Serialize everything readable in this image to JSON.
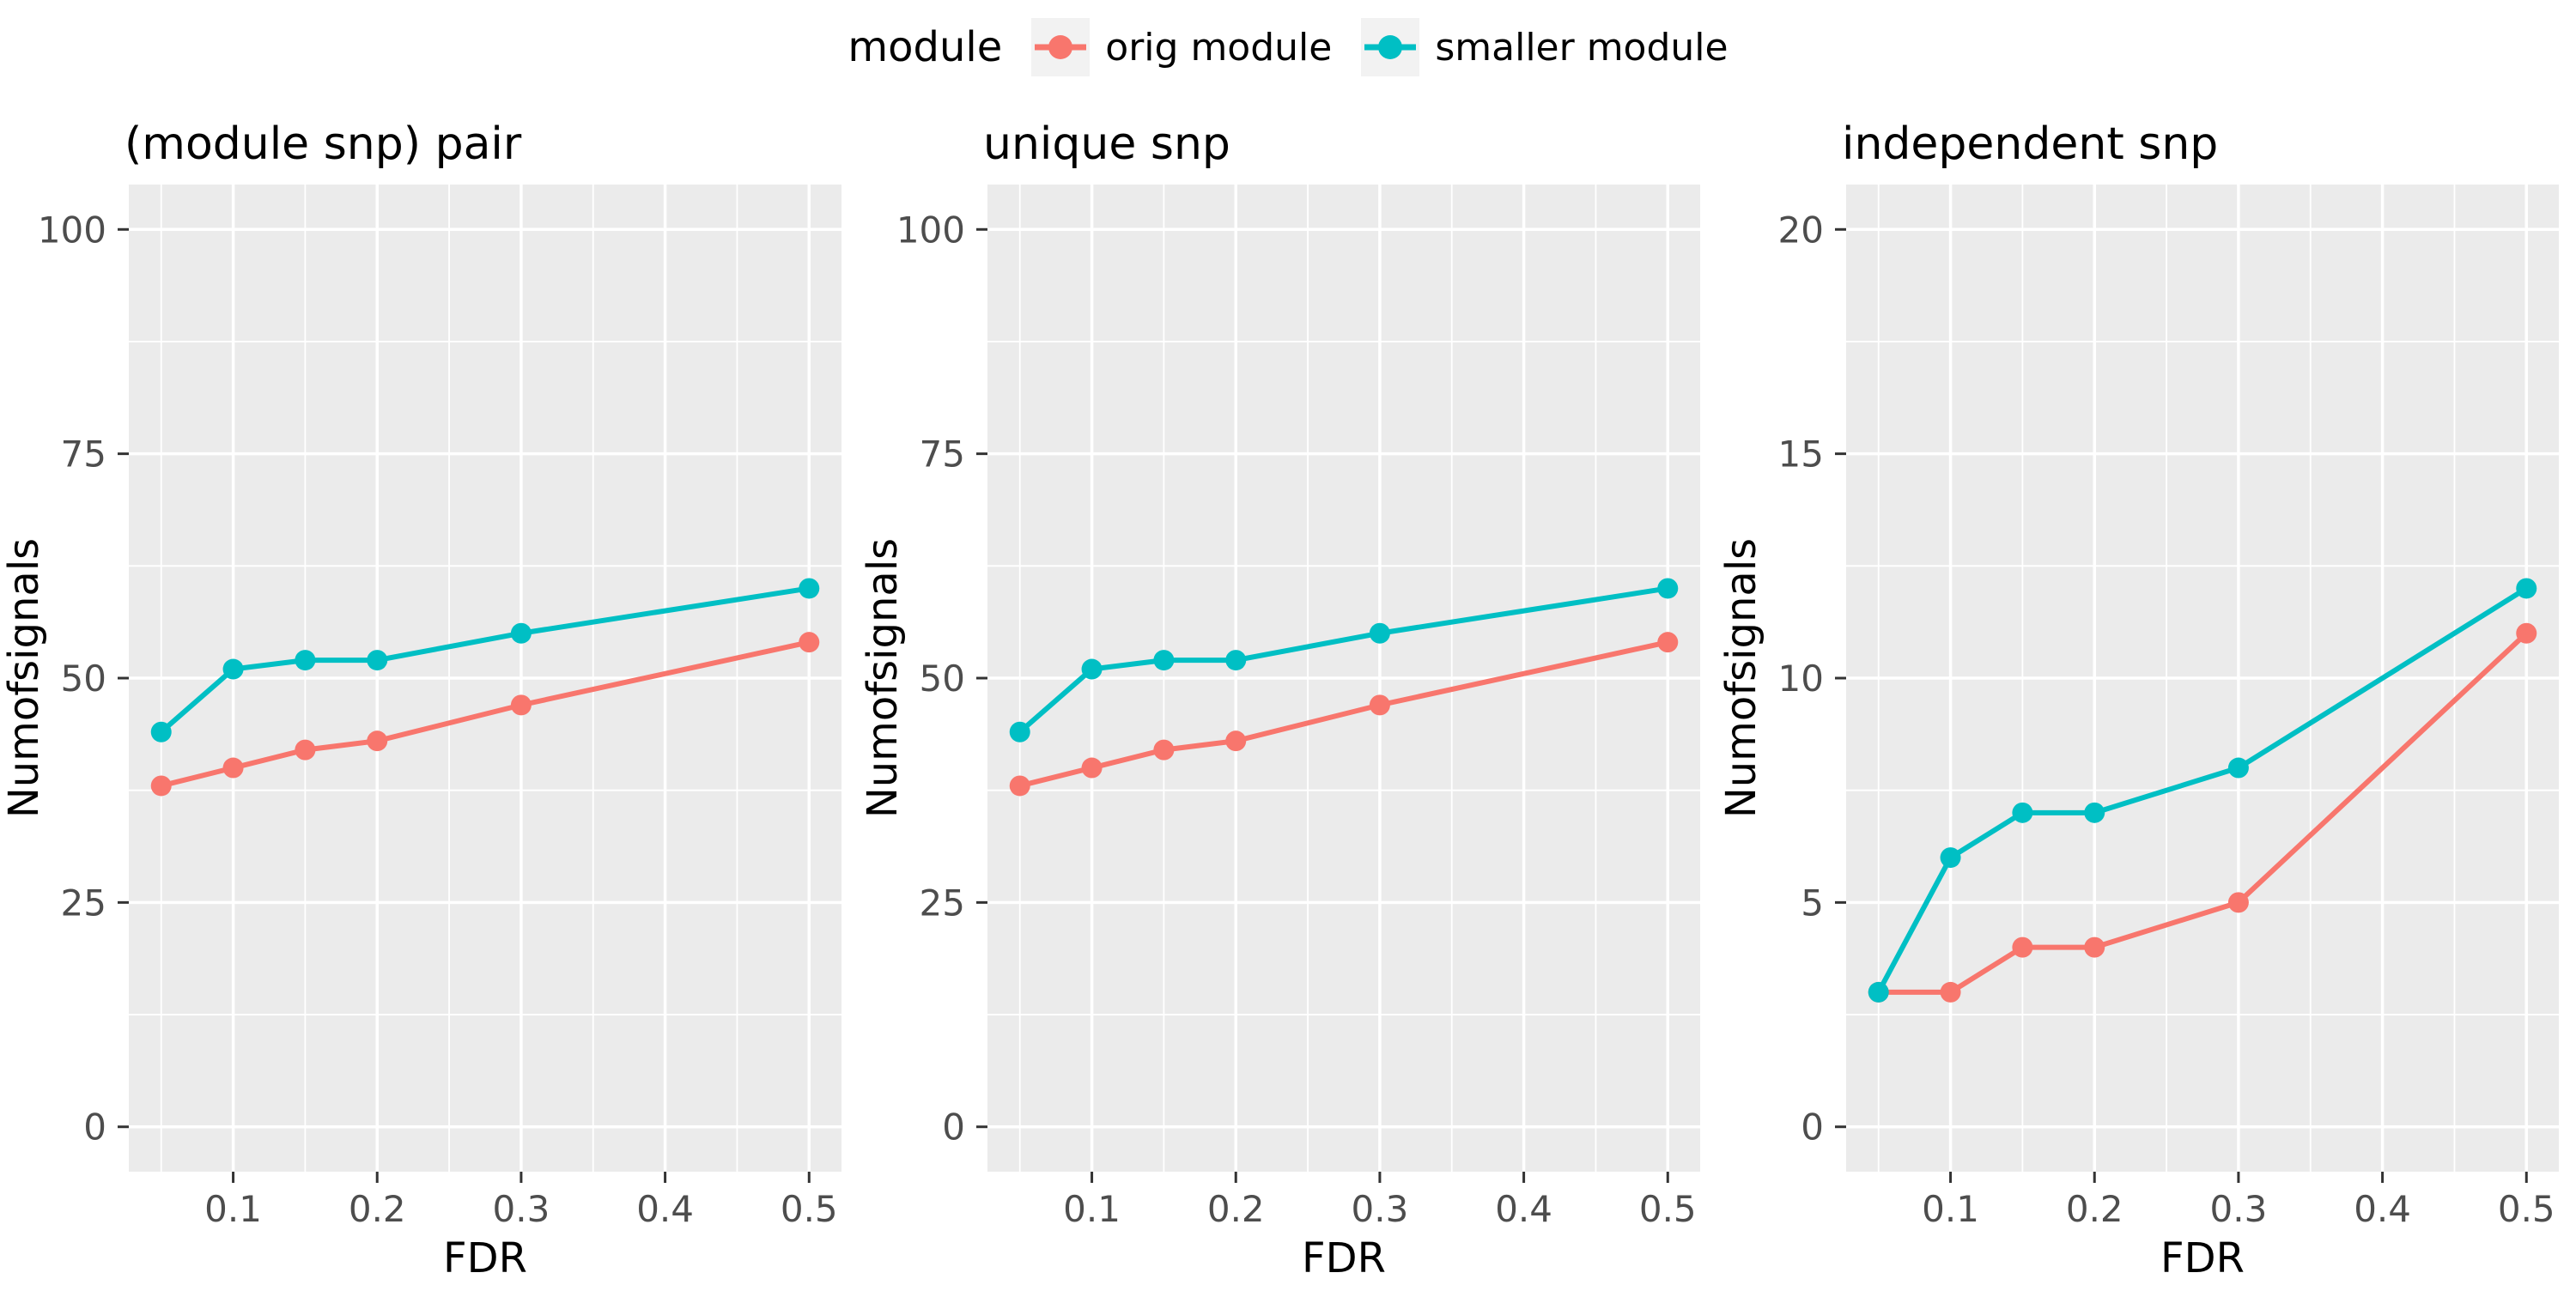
{
  "page": {
    "background": "#ffffff"
  },
  "legend": {
    "title": "module",
    "key_background": "#F2F2F2",
    "items": [
      {
        "label": "orig module",
        "color": "#F8766D"
      },
      {
        "label": "smaller module",
        "color": "#00BFC4"
      }
    ]
  },
  "style": {
    "panel_background": "#EBEBEB",
    "grid_color": "#FFFFFF",
    "tick_label_color": "#4D4D4D",
    "tick_mark_color": "#333333",
    "title_color": "#000000",
    "axis_title_color": "#000000"
  },
  "chart_data": [
    {
      "type": "line",
      "title": "(module snp) pair",
      "xlabel": "FDR",
      "ylabel": "Numofsignals",
      "x": [
        0.05,
        0.1,
        0.15,
        0.2,
        0.3,
        0.5
      ],
      "series": [
        {
          "name": "orig module",
          "color": "#F8766D",
          "values": [
            38,
            40,
            42,
            43,
            47,
            54
          ]
        },
        {
          "name": "smaller module",
          "color": "#00BFC4",
          "values": [
            44,
            51,
            52,
            52,
            55,
            60
          ]
        }
      ],
      "xlim": [
        0.05,
        0.5
      ],
      "ylim": [
        0,
        100
      ],
      "xticks": [
        0.1,
        0.2,
        0.3,
        0.4,
        0.5
      ],
      "xtick_labels": [
        "0.1",
        "0.2",
        "0.3",
        "0.4",
        "0.5"
      ],
      "yticks": [
        0,
        25,
        50,
        75,
        100
      ],
      "ytick_labels": [
        "0",
        "25",
        "50",
        "75",
        "100"
      ],
      "xminor": [
        0.05,
        0.15,
        0.25,
        0.35,
        0.45
      ],
      "yminor": [
        12.5,
        37.5,
        62.5,
        87.5
      ],
      "grid": true,
      "legend_position": "top"
    },
    {
      "type": "line",
      "title": "unique snp",
      "xlabel": "FDR",
      "ylabel": "Numofsignals",
      "x": [
        0.05,
        0.1,
        0.15,
        0.2,
        0.3,
        0.5
      ],
      "series": [
        {
          "name": "orig module",
          "color": "#F8766D",
          "values": [
            38,
            40,
            42,
            43,
            47,
            54
          ]
        },
        {
          "name": "smaller module",
          "color": "#00BFC4",
          "values": [
            44,
            51,
            52,
            52,
            55,
            60
          ]
        }
      ],
      "xlim": [
        0.05,
        0.5
      ],
      "ylim": [
        0,
        100
      ],
      "xticks": [
        0.1,
        0.2,
        0.3,
        0.4,
        0.5
      ],
      "xtick_labels": [
        "0.1",
        "0.2",
        "0.3",
        "0.4",
        "0.5"
      ],
      "yticks": [
        0,
        25,
        50,
        75,
        100
      ],
      "ytick_labels": [
        "0",
        "25",
        "50",
        "75",
        "100"
      ],
      "xminor": [
        0.05,
        0.15,
        0.25,
        0.35,
        0.45
      ],
      "yminor": [
        12.5,
        37.5,
        62.5,
        87.5
      ],
      "grid": true,
      "legend_position": "top"
    },
    {
      "type": "line",
      "title": "independent snp",
      "xlabel": "FDR",
      "ylabel": "Numofsignals",
      "x": [
        0.05,
        0.1,
        0.15,
        0.2,
        0.3,
        0.5
      ],
      "series": [
        {
          "name": "orig module",
          "color": "#F8766D",
          "values": [
            3,
            3,
            4,
            4,
            5,
            11
          ]
        },
        {
          "name": "smaller module",
          "color": "#00BFC4",
          "values": [
            3,
            6,
            7,
            7,
            8,
            12
          ]
        }
      ],
      "xlim": [
        0.05,
        0.5
      ],
      "ylim": [
        0,
        20
      ],
      "xticks": [
        0.1,
        0.2,
        0.3,
        0.4,
        0.5
      ],
      "xtick_labels": [
        "0.1",
        "0.2",
        "0.3",
        "0.4",
        "0.5"
      ],
      "yticks": [
        0,
        5,
        10,
        15,
        20
      ],
      "ytick_labels": [
        "0",
        "5",
        "10",
        "15",
        "20"
      ],
      "xminor": [
        0.05,
        0.15,
        0.25,
        0.35,
        0.45
      ],
      "yminor": [
        2.5,
        7.5,
        12.5,
        17.5
      ],
      "grid": true,
      "legend_position": "top"
    }
  ]
}
